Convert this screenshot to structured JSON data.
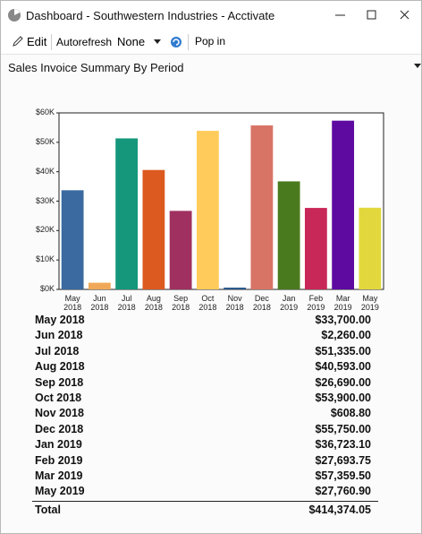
{
  "window": {
    "title": "Dashboard - Southwestern Industries - Acctivate"
  },
  "toolbar": {
    "edit": "Edit",
    "autorefresh": "Autorefresh",
    "autorefresh_value": "None",
    "pop_in": "Pop in"
  },
  "panel": {
    "title": "Sales Invoice Summary By Period"
  },
  "chart_data": {
    "type": "bar",
    "categories": [
      "May 2018",
      "Jun 2018",
      "Jul 2018",
      "Aug 2018",
      "Sep 2018",
      "Oct 2018",
      "Nov 2018",
      "Dec 2018",
      "Jan 2019",
      "Feb 2019",
      "Mar 2019",
      "May 2019"
    ],
    "values": [
      33700,
      2260,
      51335,
      40593,
      26690,
      53900,
      608.8,
      55750,
      36723.1,
      27693.75,
      57359.5,
      27760.9
    ],
    "colors": [
      "#3a6aa0",
      "#f0a858",
      "#14977a",
      "#dc5a20",
      "#a03060",
      "#ffcc5c",
      "#2c5a8e",
      "#d87466",
      "#4a7a1e",
      "#c82858",
      "#5e0aa0",
      "#e2d83e"
    ],
    "ylim": [
      0,
      60000
    ],
    "yticks": [
      {
        "value": 0,
        "label": "$0K"
      },
      {
        "value": 10000,
        "label": "$10K"
      },
      {
        "value": 20000,
        "label": "$20K"
      },
      {
        "value": 30000,
        "label": "$30K"
      },
      {
        "value": 40000,
        "label": "$40K"
      },
      {
        "value": 50000,
        "label": "$50K"
      },
      {
        "value": 60000,
        "label": "$60K"
      }
    ]
  },
  "table": {
    "rows": [
      [
        "May 2018",
        "$33,700.00"
      ],
      [
        "Jun 2018",
        "$2,260.00"
      ],
      [
        "Jul 2018",
        "$51,335.00"
      ],
      [
        "Aug 2018",
        "$40,593.00"
      ],
      [
        "Sep 2018",
        "$26,690.00"
      ],
      [
        "Oct 2018",
        "$53,900.00"
      ],
      [
        "Nov 2018",
        "$608.80"
      ],
      [
        "Dec 2018",
        "$55,750.00"
      ],
      [
        "Jan 2019",
        "$36,723.10"
      ],
      [
        "Feb 2019",
        "$27,693.75"
      ],
      [
        "Mar 2019",
        "$57,359.50"
      ],
      [
        "May 2019",
        "$27,760.90"
      ]
    ],
    "total": [
      "Total",
      "$414,374.05"
    ]
  }
}
